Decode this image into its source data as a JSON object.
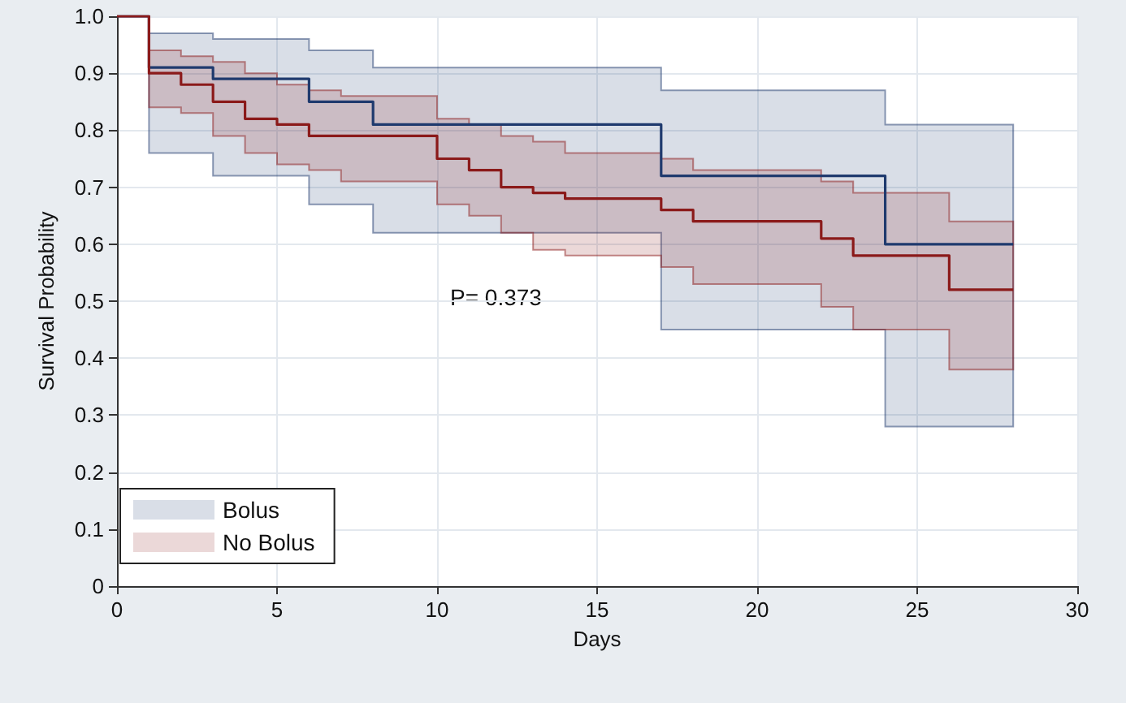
{
  "chart_data": {
    "type": "step",
    "xlabel": "Days",
    "ylabel": "Survival Probability",
    "xlim": [
      0,
      30
    ],
    "xticks": [
      0,
      5,
      10,
      15,
      20,
      25,
      30
    ],
    "ylim": [
      0,
      1
    ],
    "yticks": [
      0,
      0.1,
      0.2,
      0.3,
      0.4,
      0.5,
      0.6,
      0.7,
      0.8,
      0.9,
      {
        "value": 1,
        "label": "1.0"
      }
    ],
    "grid": true,
    "legend": "bottom left",
    "marker": "none",
    "line_style": "solid",
    "annotations": [
      "P= 0.373"
    ],
    "series": [
      {
        "name": "Bolus",
        "color": "#1f3a6e",
        "x": [
          0,
          1,
          3,
          6,
          8,
          17,
          24,
          28
        ],
        "values": [
          1,
          0.91,
          0.89,
          0.85,
          0.81,
          0.72,
          0.6,
          0.6
        ],
        "upper": [
          1,
          0.97,
          0.96,
          0.94,
          0.91,
          0.87,
          0.81,
          0.81
        ],
        "lower": [
          1,
          0.76,
          0.72,
          0.67,
          0.62,
          0.45,
          0.28,
          0.28
        ]
      },
      {
        "name": "No Bolus",
        "color": "#8b1a1a",
        "x": [
          0,
          1,
          2,
          3,
          4,
          5,
          6,
          7,
          10,
          11,
          12,
          13,
          14,
          17,
          18,
          22,
          23,
          26,
          28
        ],
        "values": [
          1,
          0.9,
          0.88,
          0.85,
          0.82,
          0.81,
          0.79,
          0.79,
          0.75,
          0.73,
          0.7,
          0.69,
          0.68,
          0.66,
          0.64,
          0.61,
          0.58,
          0.52,
          0.52
        ],
        "upper": [
          1,
          0.94,
          0.93,
          0.92,
          0.9,
          0.88,
          0.87,
          0.86,
          0.82,
          0.81,
          0.79,
          0.78,
          0.76,
          0.75,
          0.73,
          0.71,
          0.69,
          0.64,
          0.64
        ],
        "lower": [
          1,
          0.84,
          0.83,
          0.79,
          0.76,
          0.74,
          0.73,
          0.71,
          0.67,
          0.65,
          0.62,
          0.59,
          0.58,
          0.56,
          0.53,
          0.49,
          0.45,
          0.38,
          0.38
        ]
      }
    ]
  }
}
